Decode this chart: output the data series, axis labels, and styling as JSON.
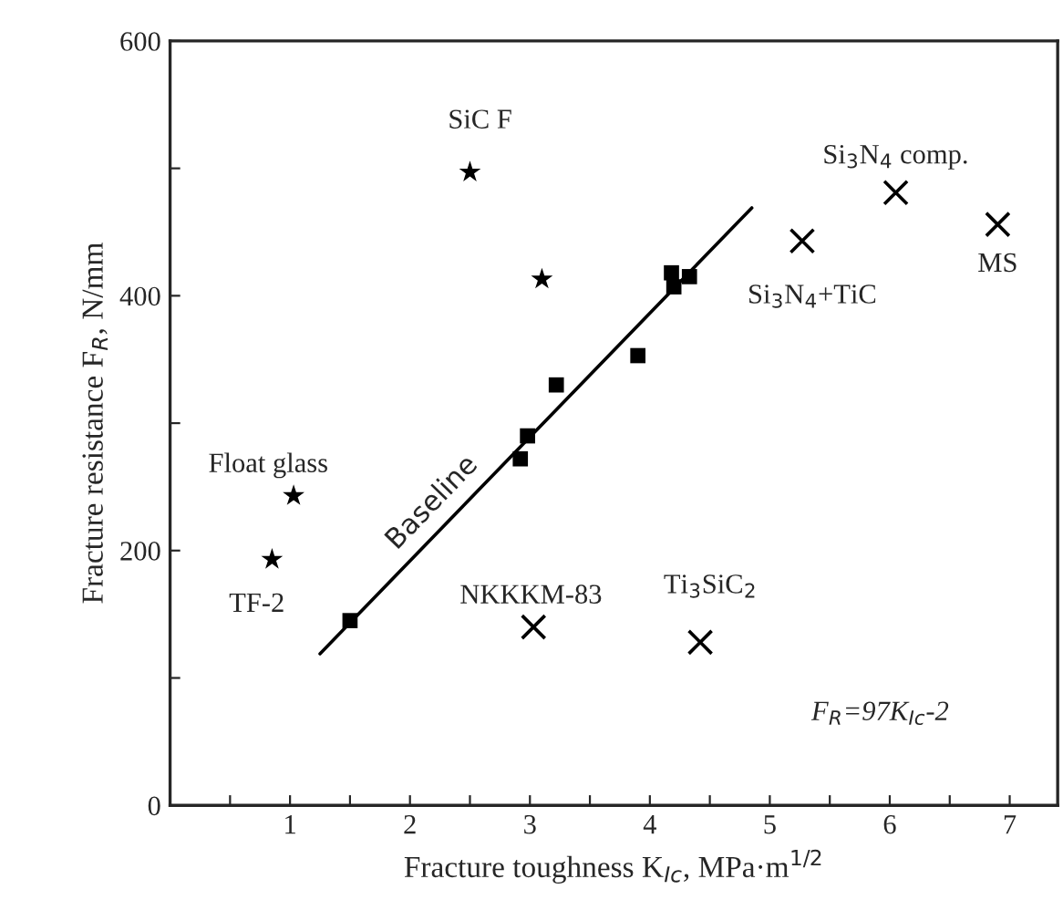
{
  "chart_data": {
    "type": "scatter",
    "xlabel": "Fracture toughness K$_{Ic}$, MPa·m$^{1/2}$",
    "ylabel": "Fracture resistance F$_{R}$, N/mm",
    "xlim": [
      0,
      7.4
    ],
    "ylim": [
      0,
      600
    ],
    "xticks": [
      {
        "value": 0.5,
        "label": null
      },
      1,
      {
        "value": 1.5,
        "label": null
      },
      2,
      {
        "value": 2.5,
        "label": null
      },
      3,
      {
        "value": 3.5,
        "label": null
      },
      4,
      {
        "value": 4.5,
        "label": null
      },
      5,
      {
        "value": 5.5,
        "label": null
      },
      6,
      {
        "value": 6.5,
        "label": null
      },
      7
    ],
    "yticks": [
      0,
      {
        "value": 100,
        "label": null
      },
      200,
      {
        "value": 300,
        "label": null
      },
      400,
      {
        "value": 500,
        "label": null
      },
      600
    ],
    "grid": false,
    "legend": false,
    "series": [
      {
        "type": "line",
        "name": "Baseline",
        "color": "#000000",
        "x": [
          1.25,
          4.85
        ],
        "values": [
          119,
          469
        ],
        "marker": "none",
        "line_style": "solid"
      },
      {
        "color": "#000000",
        "marker": "square",
        "x": [
          1.5,
          2.92,
          2.98,
          3.22,
          3.9,
          4.18,
          4.2,
          4.33
        ],
        "values": [
          145,
          272,
          290,
          330,
          353,
          418,
          407,
          415
        ]
      },
      {
        "color": "#000000",
        "marker": "star",
        "x": [
          0.85,
          1.03,
          2.5,
          3.1
        ],
        "values": [
          193,
          243,
          497,
          413
        ]
      },
      {
        "color": "#000000",
        "marker": "cross",
        "x": [
          3.03,
          4.42,
          5.27,
          6.05,
          6.9
        ],
        "values": [
          140,
          128,
          443,
          481,
          456
        ]
      }
    ],
    "annotations": [
      {
        "text": "TF-2",
        "x": 0.85,
        "y": 193
      },
      {
        "text": "Float glass",
        "x": 1.03,
        "y": 243
      },
      {
        "text": "SiC F",
        "x": 2.5,
        "y": 497
      },
      {
        "text": "NKKKM-83",
        "x": 3.03,
        "y": 140
      },
      {
        "text": "Ti$_{3}$SiC$_{2}$",
        "x": 4.42,
        "y": 128
      },
      {
        "text": "Si$_{3}$N$_{4}$+TiC",
        "x": 5.27,
        "y": 443
      },
      {
        "text": "Si$_{3}$N$_{4}$ comp.",
        "x": 6.05,
        "y": 481
      },
      {
        "text": "MS",
        "x": 6.9,
        "y": 456
      },
      "F$_{R}$=97K$_{Ic}$-2"
    ]
  }
}
